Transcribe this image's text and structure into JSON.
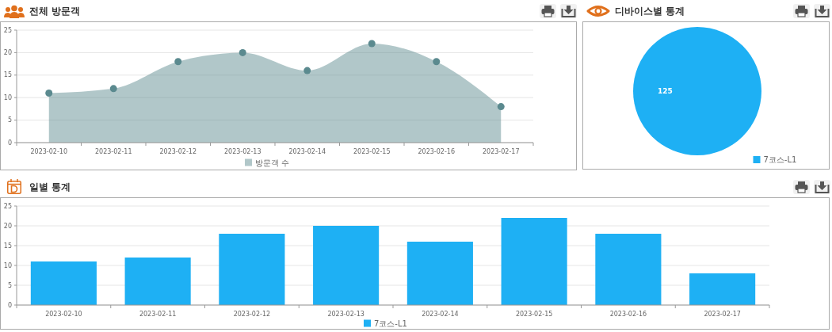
{
  "chart_data": [
    {
      "type": "area",
      "title": "전체 방문객",
      "categories": [
        "2023-02-10",
        "2023-02-11",
        "2023-02-12",
        "2023-02-13",
        "2023-02-14",
        "2023-02-15",
        "2023-02-16",
        "2023-02-17"
      ],
      "series": [
        {
          "name": "방문객 수",
          "color": "#5b8a8f",
          "values": [
            11,
            12,
            18,
            20,
            16,
            22,
            18,
            8
          ]
        }
      ],
      "ylim": [
        0,
        25
      ],
      "yticks": [
        0,
        5,
        10,
        15,
        20,
        25
      ],
      "grid": "y",
      "legend": "bottom",
      "marker": "circle"
    },
    {
      "type": "pie",
      "title": "디바이스별 통계",
      "categories": [
        "7코스-L1"
      ],
      "values": [
        125
      ],
      "colors": [
        "#1eb0f4"
      ],
      "data_labels": true,
      "legend": "bottom right"
    },
    {
      "type": "bar",
      "title": "일별 통계",
      "categories": [
        "2023-02-10",
        "2023-02-11",
        "2023-02-12",
        "2023-02-13",
        "2023-02-14",
        "2023-02-15",
        "2023-02-16",
        "2023-02-17"
      ],
      "series": [
        {
          "name": "7코스-L1",
          "color": "#1eb0f4",
          "values": [
            11,
            12,
            18,
            20,
            16,
            22,
            18,
            8
          ]
        }
      ],
      "ylim": [
        0,
        25
      ],
      "yticks": [
        0,
        5,
        10,
        15,
        20,
        25
      ],
      "grid": "y",
      "legend": "bottom"
    }
  ]
}
